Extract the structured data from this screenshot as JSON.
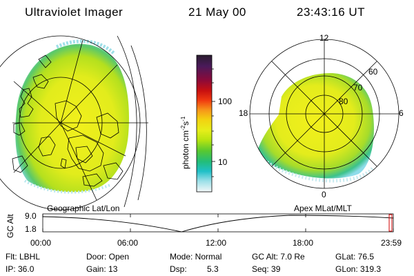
{
  "header": {
    "title": "Ultraviolet Imager",
    "date": "21 May 00",
    "time": "23:43:16 UT"
  },
  "colorbar": {
    "label": "photon cm",
    "exp1": "-2",
    "mid": "s",
    "exp2": "-1",
    "ticks": [
      "100",
      "10"
    ],
    "colors": [
      "#2a1c2e",
      "#4a1a5a",
      "#8a0a3a",
      "#c81010",
      "#f03a10",
      "#f7951a",
      "#f3d110",
      "#e6ee1a",
      "#c8ea10",
      "#9ad810",
      "#58c830",
      "#22bd7a",
      "#20c0c8",
      "#7ad8e6",
      "#c8eef2",
      "#f4f8f8"
    ]
  },
  "left_panel": {
    "caption": "Geographic Lat/Lon"
  },
  "right_panel": {
    "caption": "Apex MLat/MLT",
    "mlt_labels": [
      "12",
      "18",
      "6",
      "0"
    ],
    "lat_labels": [
      "60",
      "70",
      "80"
    ]
  },
  "altitude_plot": {
    "ylabel": "GC Alt",
    "yticks": [
      "9.0",
      "1.8"
    ],
    "xticks": [
      "00:00",
      "06:00",
      "12:00",
      "18:00",
      "23:59"
    ],
    "marker_color": "#d00000"
  },
  "info": {
    "filter": "Flt: LBHL",
    "ip": "IP: 36.0",
    "door": "Door: Open",
    "gain": "Gain: 13",
    "mode": "Mode: Normal",
    "dsp_label": "Dsp:",
    "dsp_value": "5.3",
    "gc_alt": "GC Alt: 7.0 Re",
    "seq": "Seq: 39",
    "glat": "GLat: 76.5",
    "glon": "GLon: 319.3"
  }
}
